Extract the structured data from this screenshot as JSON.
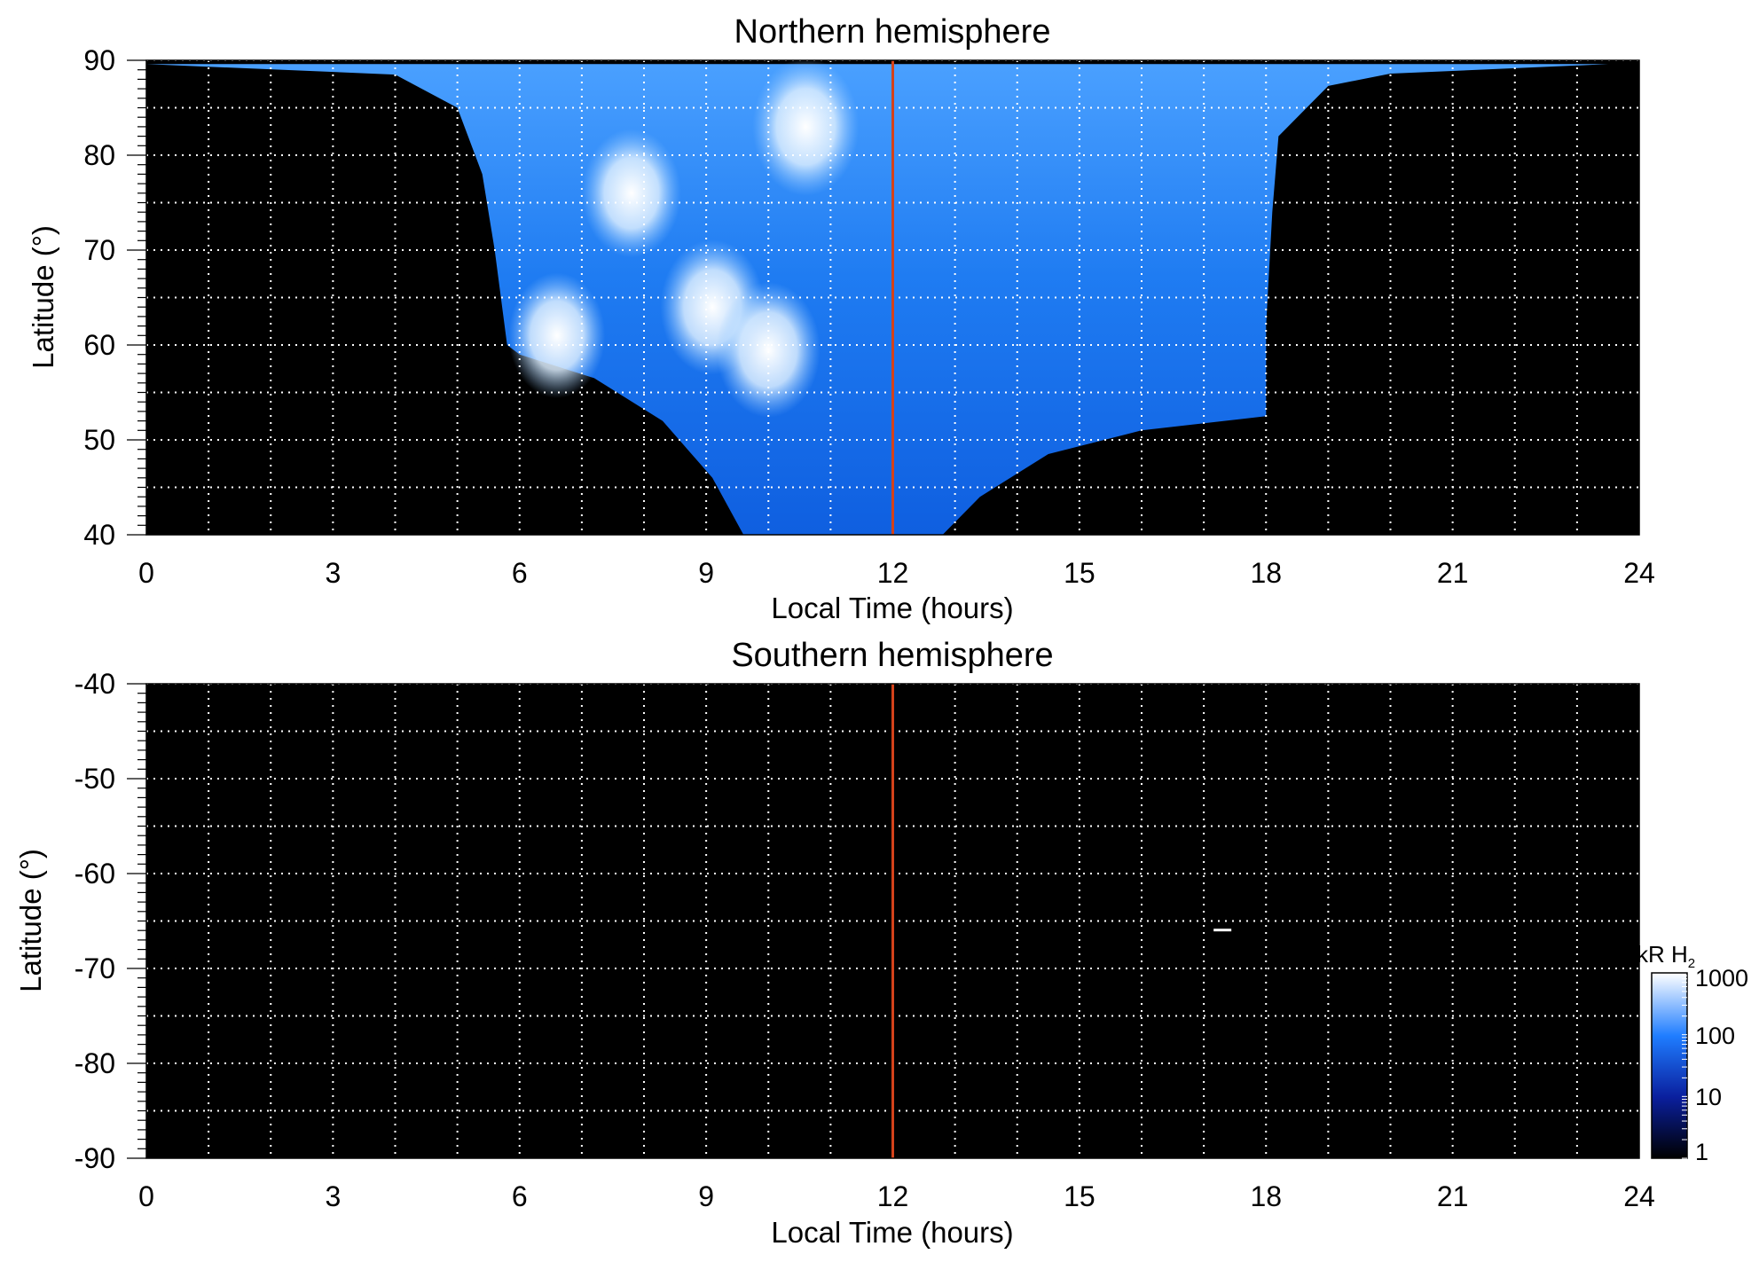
{
  "chart_data": [
    {
      "type": "heatmap",
      "title": "Northern hemisphere",
      "xlabel": "Local Time (hours)",
      "ylabel": "Latitude (°)",
      "xlim": [
        0,
        24
      ],
      "ylim": [
        40,
        90
      ],
      "xticks": [
        "0",
        "3",
        "6",
        "9",
        "12",
        "15",
        "18",
        "21",
        "24"
      ],
      "yticks": [
        "40",
        "50",
        "60",
        "70",
        "80",
        "90"
      ],
      "y_minor_step": 1,
      "grid": true,
      "grid_x_step": 1,
      "grid_y_step": 5,
      "grid_style": "dotted white",
      "noon_marker": {
        "x": 12,
        "color": "#d4421a"
      },
      "emission_region": {
        "outline": [
          [
            0,
            89.6
          ],
          [
            4,
            88.5
          ],
          [
            5,
            85
          ],
          [
            5.4,
            78
          ],
          [
            5.6,
            70
          ],
          [
            5.8,
            60
          ],
          [
            6,
            59
          ],
          [
            7.2,
            56.5
          ],
          [
            8.3,
            52
          ],
          [
            9.1,
            46
          ],
          [
            9.6,
            40
          ],
          [
            12.8,
            40
          ],
          [
            13.4,
            44
          ],
          [
            14.5,
            48.5
          ],
          [
            16,
            51
          ],
          [
            18,
            52.5
          ],
          [
            18,
            62
          ],
          [
            18.1,
            74
          ],
          [
            18.2,
            82
          ],
          [
            19,
            87.3
          ],
          [
            20,
            88.6
          ],
          [
            23.5,
            89.6
          ]
        ],
        "typical_brightness_kR": 100
      },
      "bright_features": [
        {
          "x": 10.6,
          "y": 83,
          "brightness_kR": 1000
        },
        {
          "x": 9.1,
          "y": 64,
          "brightness_kR": 800
        },
        {
          "x": 10.0,
          "y": 59.5,
          "brightness_kR": 800
        },
        {
          "x": 7.8,
          "y": 76,
          "brightness_kR": 500
        },
        {
          "x": 6.6,
          "y": 61,
          "brightness_kR": 400
        }
      ]
    },
    {
      "type": "heatmap",
      "title": "Southern hemisphere",
      "xlabel": "Local Time (hours)",
      "ylabel": "Latitude (°)",
      "xlim": [
        0,
        24
      ],
      "ylim": [
        -90,
        -40
      ],
      "xticks": [
        "0",
        "3",
        "6",
        "9",
        "12",
        "15",
        "18",
        "21",
        "24"
      ],
      "yticks": [
        "-40",
        "-50",
        "-60",
        "-70",
        "-80",
        "-90"
      ],
      "y_minor_step": 1,
      "grid": true,
      "grid_x_step": 1,
      "grid_y_step": 5,
      "grid_style": "dotted white",
      "noon_marker": {
        "x": 12,
        "color": "#d4421a"
      },
      "emission_region": null,
      "bright_features": [
        {
          "x": 17.3,
          "y": -66,
          "brightness_kR": 1000
        }
      ]
    }
  ],
  "colorbar": {
    "label": "kR H",
    "label_subscript": "2",
    "scale": "log",
    "range": [
      1,
      1000
    ],
    "ticks": [
      "1000",
      "100",
      "10",
      "1"
    ],
    "colors": [
      "#000000",
      "#0a1f9e",
      "#1f7dff",
      "#ffffff"
    ]
  }
}
